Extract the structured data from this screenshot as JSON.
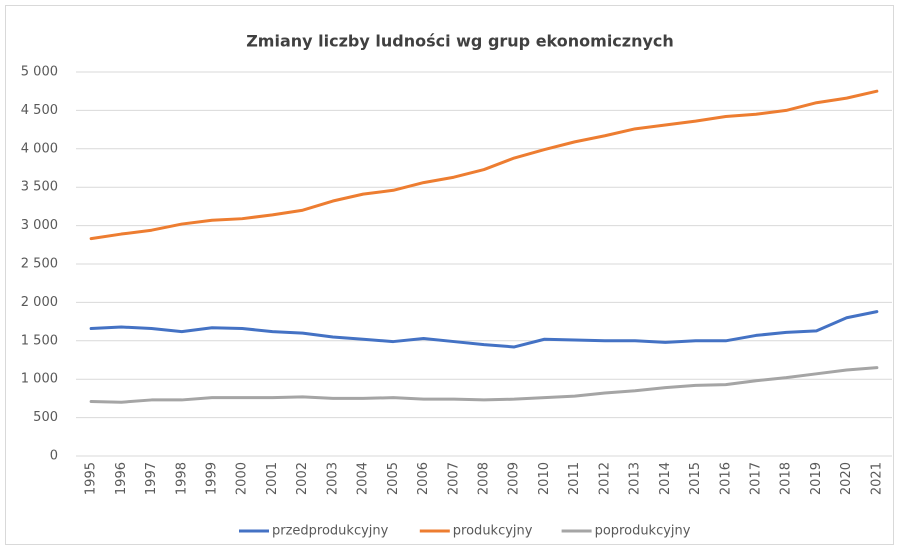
{
  "chart_data": {
    "type": "line",
    "title": "Zmiany liczby ludności wg grup ekonomicznych",
    "categories": [
      "1995",
      "1996",
      "1997",
      "1998",
      "1999",
      "2000",
      "2001",
      "2002",
      "2003",
      "2004",
      "2005",
      "2006",
      "2007",
      "2008",
      "2009",
      "2010",
      "2011",
      "2012",
      "2013",
      "2014",
      "2015",
      "2016",
      "2017",
      "2018",
      "2019",
      "2020",
      "2021"
    ],
    "series": [
      {
        "name": "przedprodukcyjny",
        "color": "#4472c4",
        "values": [
          1660,
          1680,
          1660,
          1620,
          1670,
          1660,
          1620,
          1600,
          1550,
          1520,
          1490,
          1530,
          1490,
          1450,
          1420,
          1520,
          1510,
          1500,
          1500,
          1480,
          1500,
          1500,
          1570,
          1610,
          1630,
          1800,
          1880
        ]
      },
      {
        "name": "produkcyjny",
        "color": "#ed7d31",
        "values": [
          2830,
          2890,
          2940,
          3020,
          3070,
          3090,
          3140,
          3200,
          3320,
          3410,
          3460,
          3560,
          3630,
          3730,
          3880,
          3990,
          4090,
          4170,
          4260,
          4310,
          4360,
          4420,
          4450,
          4500,
          4600,
          4660,
          4750
        ]
      },
      {
        "name": "poprodukcyjny",
        "color": "#a5a5a5",
        "values": [
          710,
          700,
          730,
          730,
          760,
          760,
          760,
          770,
          750,
          750,
          760,
          740,
          740,
          730,
          740,
          760,
          780,
          820,
          850,
          890,
          920,
          930,
          980,
          1020,
          1070,
          1120,
          1150
        ]
      }
    ],
    "ylim": [
      0,
      5000
    ],
    "yticks": [
      0,
      500,
      {
        "value": 1000,
        "label": "1 000"
      },
      {
        "value": 1500,
        "label": "1 500"
      },
      {
        "value": 2000,
        "label": "2 000"
      },
      {
        "value": 2500,
        "label": "2 500"
      },
      {
        "value": 3000,
        "label": "3 000"
      },
      {
        "value": 3500,
        "label": "3 500"
      },
      {
        "value": 4000,
        "label": "4 000"
      },
      {
        "value": 4500,
        "label": "4 500"
      },
      {
        "value": 5000,
        "label": "5 000"
      }
    ],
    "grid": true,
    "legend": "bottom"
  }
}
